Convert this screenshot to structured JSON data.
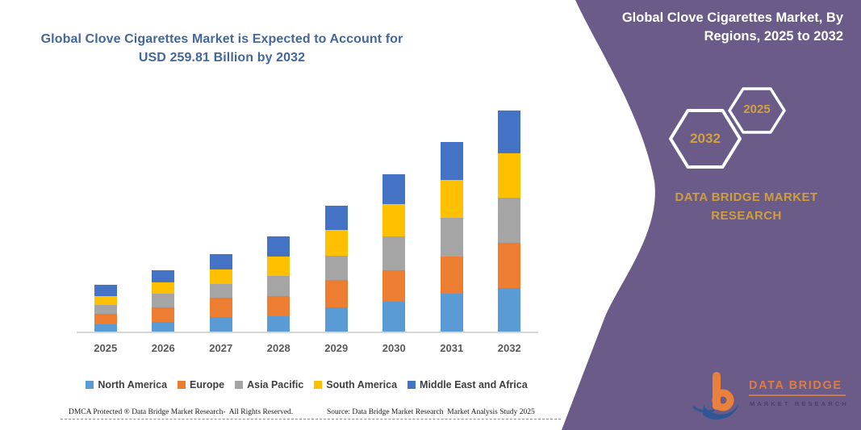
{
  "left_panel": {
    "title": "Global Clove Cigarettes Market is Expected to Account for USD 259.81 Billion by 2032",
    "footer_left": "DMCA Protected ® Data Bridge Market Research-  All Rights Reserved.",
    "footer_right": "Source: Data Bridge Market Research  Market Analysis Study 2025"
  },
  "right_panel": {
    "heading": "Global Clove Cigarettes Market, By Regions, 2025 to 2032",
    "hexagon_back_label": "2025",
    "hexagon_front_label": "2032",
    "brand_text": "DATA BRIDGE MARKET RESEARCH",
    "logo_line1": "DATA BRIDGE",
    "logo_line2": "MARKET RESEARCH"
  },
  "palette": {
    "panel_purple": "#6A5B88",
    "gold_accent": "#CD9F3F",
    "title_blue": "#44679B",
    "logo_orange": "#E8813E",
    "logo_navy": "#2F5795",
    "axis_gray": "#D6D6D6",
    "label_gray": "#595959"
  },
  "chart_data": {
    "type": "bar",
    "stacked": true,
    "title": "Global Clove Cigarettes Market is Expected to Account for USD 259.81 Billion by 2032",
    "xlabel": "",
    "ylabel": "",
    "unit": "USD Billion",
    "ylim": [
      0,
      280
    ],
    "gridlines": false,
    "y_axis_visible": false,
    "legend_position": "bottom",
    "categories": [
      "2025",
      "2026",
      "2027",
      "2028",
      "2029",
      "2030",
      "2031",
      "2032"
    ],
    "series": [
      {
        "name": "North America",
        "color": "#5B9BD5",
        "values": [
          9.5,
          12.5,
          17.5,
          18.5,
          29.0,
          36.0,
          45.0,
          51.7
        ]
      },
      {
        "name": "Europe",
        "color": "#ED7D31",
        "values": [
          12.5,
          17.0,
          23.0,
          24.5,
          32.5,
          37.0,
          44.0,
          53.2
        ]
      },
      {
        "name": "Asia Pacific",
        "color": "#A5A5A5",
        "values": [
          9.8,
          15.5,
          16.5,
          23.0,
          28.5,
          39.0,
          45.5,
          52.6
        ]
      },
      {
        "name": "South America",
        "color": "#FFC000",
        "values": [
          11.2,
          14.0,
          17.0,
          22.5,
          30.0,
          38.0,
          44.0,
          52.3
        ]
      },
      {
        "name": "Middle East and Africa",
        "color": "#4472C4",
        "values": [
          13.0,
          14.0,
          18.0,
          23.5,
          28.0,
          35.0,
          44.5,
          50.0
        ]
      }
    ],
    "totals": [
      56.0,
      73.0,
      92.0,
      112.0,
      148.0,
      185.0,
      223.0,
      259.8
    ]
  }
}
